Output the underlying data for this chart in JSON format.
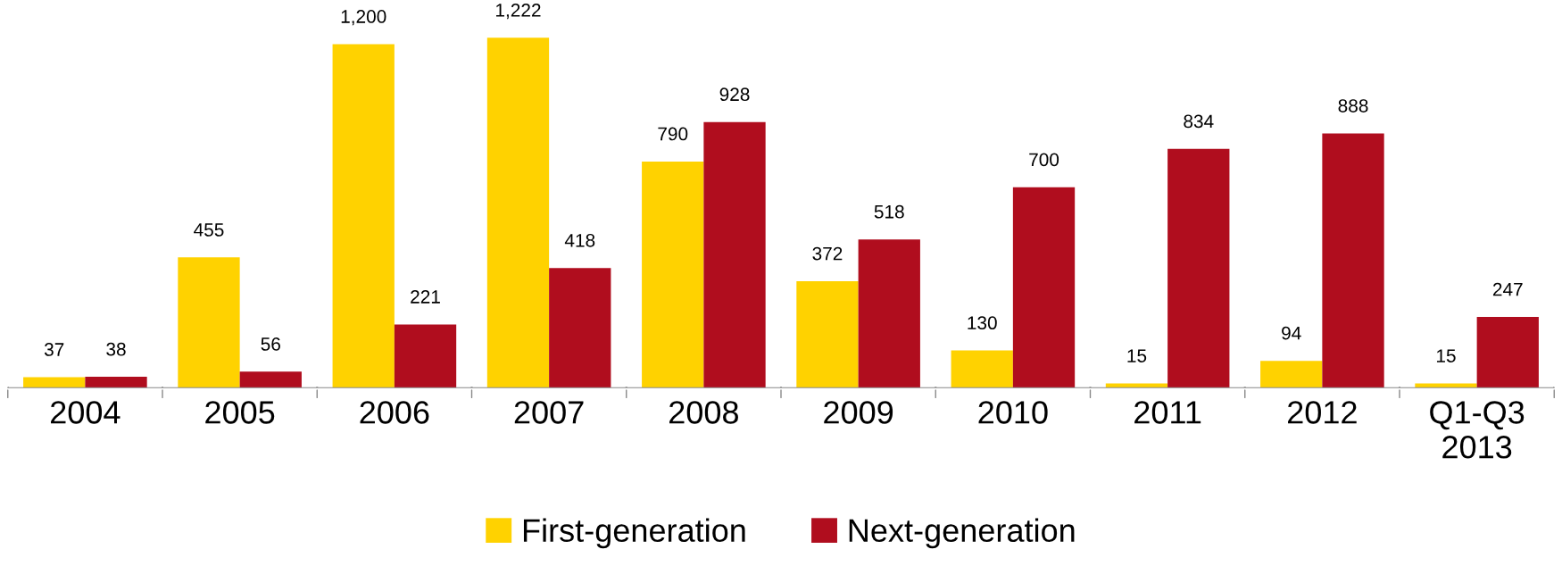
{
  "chart_data": {
    "type": "bar",
    "categories": [
      "2004",
      "2005",
      "2006",
      "2007",
      "2008",
      "2009",
      "2010",
      "2011",
      "2012",
      "Q1-Q3\n2013"
    ],
    "series": [
      {
        "name": "First-generation",
        "color": "#ffd200",
        "values": [
          37,
          455,
          1200,
          1222,
          790,
          372,
          130,
          15,
          94,
          15
        ],
        "value_labels": [
          "37",
          "455",
          "1,200",
          "1,222",
          "790",
          "372",
          "130",
          "15",
          "94",
          "15"
        ]
      },
      {
        "name": "Next-generation",
        "color": "#b00d1e",
        "values": [
          38,
          56,
          221,
          418,
          928,
          518,
          700,
          834,
          888,
          247
        ],
        "value_labels": [
          "38",
          "56",
          "221",
          "418",
          "928",
          "518",
          "700",
          "834",
          "888",
          "247"
        ]
      }
    ],
    "legend": "bottom",
    "tick_labels": "x"
  }
}
